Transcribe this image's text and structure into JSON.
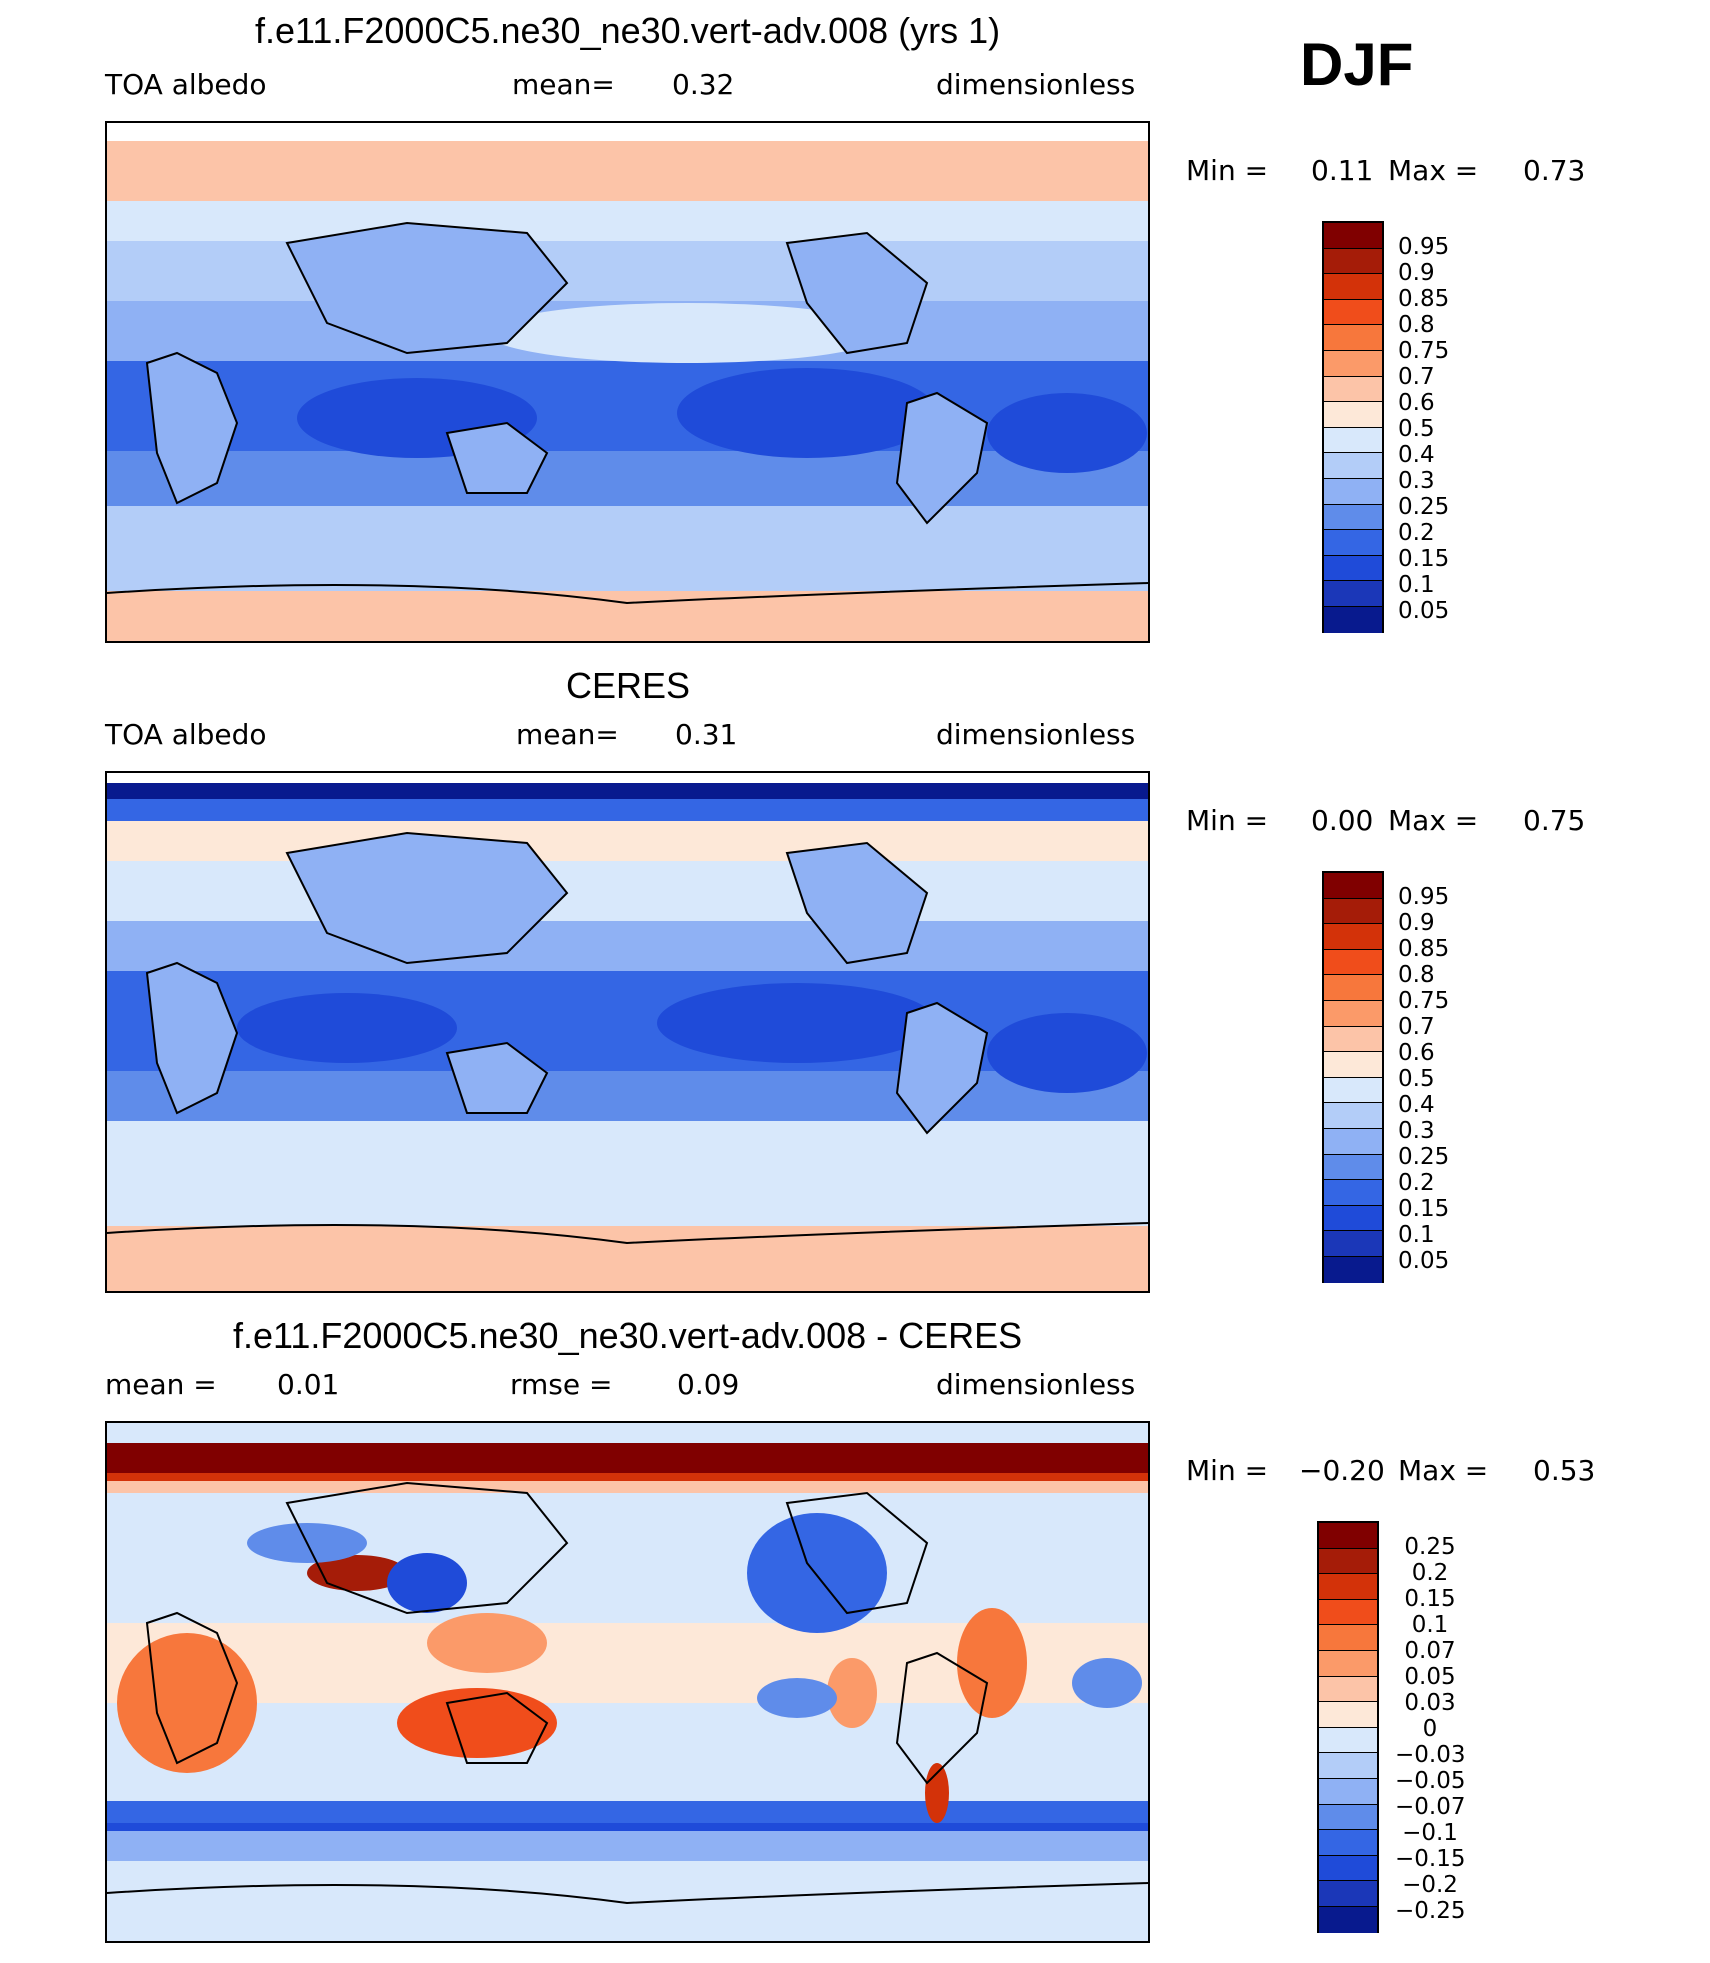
{
  "season": "DJF",
  "panels": [
    {
      "title": "f.e11.F2000C5.ne30_ne30.vert-adv.008 (yrs 1)",
      "left_label": "TOA albedo",
      "mid_label": "mean=",
      "mid_value": "0.32",
      "right_label": "dimensionless",
      "min_label": "Min =",
      "min_value": "0.11",
      "max_label": "Max =",
      "max_value": "0.73",
      "colorbar_levels": [
        "0.95",
        "0.9",
        "0.85",
        "0.8",
        "0.75",
        "0.7",
        "0.6",
        "0.5",
        "0.4",
        "0.3",
        "0.25",
        "0.2",
        "0.15",
        "0.1",
        "0.05"
      ]
    },
    {
      "title": "CERES",
      "left_label": "TOA albedo",
      "mid_label": "mean=",
      "mid_value": "0.31",
      "right_label": "dimensionless",
      "min_label": "Min =",
      "min_value": "0.00",
      "max_label": "Max =",
      "max_value": "0.75",
      "colorbar_levels": [
        "0.95",
        "0.9",
        "0.85",
        "0.8",
        "0.75",
        "0.7",
        "0.6",
        "0.5",
        "0.4",
        "0.3",
        "0.25",
        "0.2",
        "0.15",
        "0.1",
        "0.05"
      ]
    },
    {
      "title": "f.e11.F2000C5.ne30_ne30.vert-adv.008 - CERES",
      "left_label": "mean =",
      "left_value": "0.01",
      "mid_label": "rmse =",
      "mid_value": "0.09",
      "right_label": "dimensionless",
      "min_label": "Min =",
      "min_value": "−0.20",
      "max_label": "Max =",
      "max_value": "0.53",
      "colorbar_levels": [
        "0.25",
        "0.2",
        "0.15",
        "0.1",
        "0.07",
        "0.05",
        "0.03",
        "0",
        "−0.03",
        "−0.05",
        "−0.07",
        "−0.1",
        "−0.15",
        "−0.2",
        "−0.25"
      ]
    }
  ],
  "colors": {
    "sequential": [
      "#800000",
      "#a51c08",
      "#d33209",
      "#f04d1b",
      "#f7773c",
      "#fb9a69",
      "#fcc4a8",
      "#fde8d8",
      "#d8e8fb",
      "#b3cdf8",
      "#8fb1f4",
      "#5f8cea",
      "#3466e4",
      "#1f4bd9",
      "#1b37b8",
      "#081a8e"
    ],
    "diff": [
      "#800000",
      "#a51c08",
      "#d33209",
      "#f04d1b",
      "#f7773c",
      "#fb9a69",
      "#fcc4a8",
      "#fde8d8",
      "#d8e8fb",
      "#b3cdf8",
      "#8fb1f4",
      "#5f8cea",
      "#3466e4",
      "#1f4bd9",
      "#1b37b8",
      "#081a8e"
    ]
  }
}
